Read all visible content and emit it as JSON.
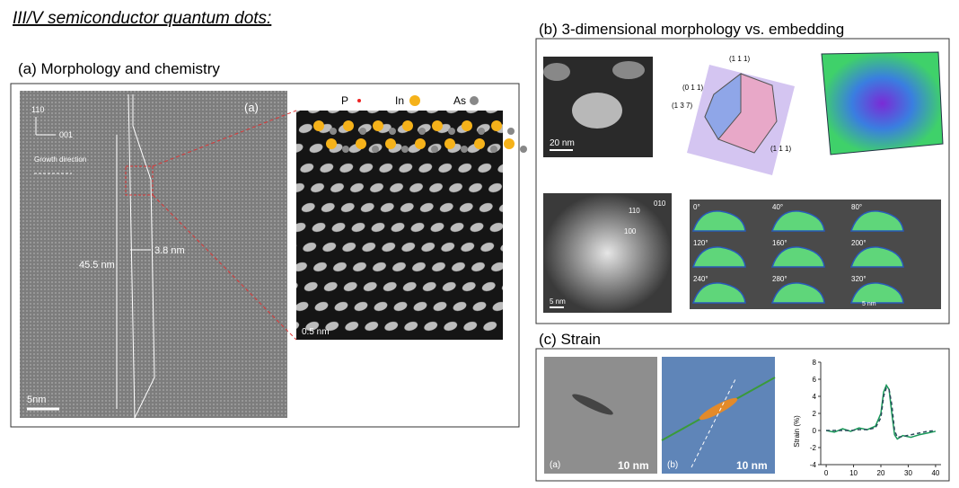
{
  "header": {
    "title": "III/V semiconductor quantum dots:"
  },
  "panel_a": {
    "title": "(a) Morphology and chemistry",
    "axis_110": "110",
    "axis_001": "001",
    "growth": "Growth direction",
    "length": "45.5 nm",
    "width": "3.8 nm",
    "scale": "5nm",
    "label": "(a)",
    "legend": [
      "P",
      "In",
      "As"
    ],
    "zoom_scale": "0.5 nm"
  },
  "panel_b": {
    "title": "(b) 3-dimensional morphology vs. embedding",
    "scale_1": "20 nm",
    "facets": [
      "(0 1 1)",
      "(1 1 1)",
      "(1 3 7)",
      "(1 1 1)"
    ],
    "axes": [
      "110",
      "010",
      "100"
    ],
    "scale_2": "5 nm",
    "angles": [
      "0°",
      "40°",
      "80°",
      "120°",
      "160°",
      "200°",
      "240°",
      "280°",
      "320°"
    ],
    "scale_3": "5 nm"
  },
  "panel_c": {
    "title": "(c) Strain",
    "label_a": "(a)",
    "scale_a": "10 nm",
    "label_b": "(b)",
    "scale_b": "10 nm"
  },
  "strain_plot": {
    "type": "line",
    "y_label": "Strain (%)",
    "xlim": [
      -2,
      42
    ],
    "ylim": [
      -4,
      8
    ],
    "xticks": [
      0,
      10,
      20,
      30,
      40
    ],
    "yticks": [
      -4,
      -2,
      0,
      2,
      4,
      6,
      8
    ],
    "x": [
      0,
      3,
      6,
      9,
      12,
      15,
      18,
      20,
      21,
      22,
      23,
      24,
      25,
      26,
      28,
      31,
      34,
      37,
      40
    ],
    "series": [
      {
        "color": "#1a9a5a",
        "values": [
          0,
          -0.2,
          0.2,
          -0.1,
          0.3,
          0.1,
          0.5,
          2,
          4.5,
          5.3,
          4.8,
          2,
          -0.5,
          -1,
          -0.6,
          -0.8,
          -0.5,
          -0.3,
          -0.1
        ]
      },
      {
        "color": "#2a4a5a",
        "values": [
          0,
          0,
          0,
          0,
          0.1,
          0.1,
          0.3,
          1.5,
          4,
          5,
          4.8,
          3,
          0,
          -0.8,
          -0.7,
          -0.5,
          -0.3,
          -0.1,
          0
        ]
      }
    ]
  }
}
